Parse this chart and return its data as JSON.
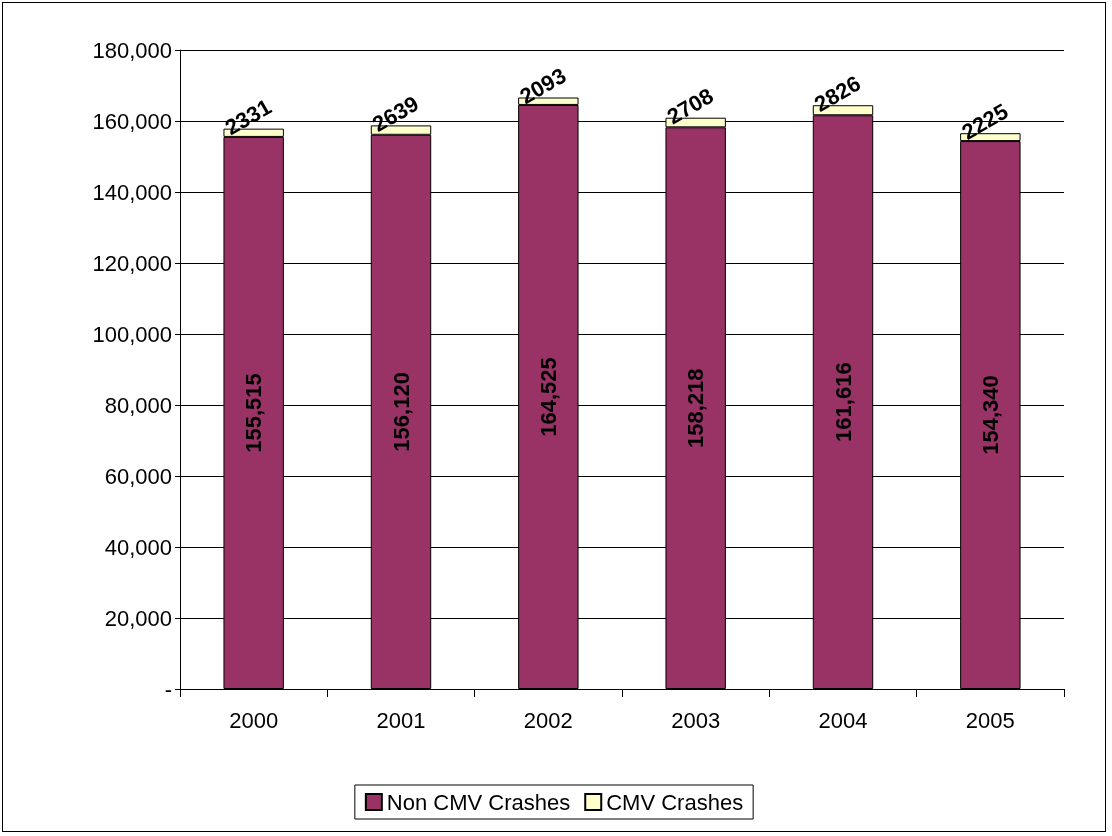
{
  "chart_data": {
    "type": "bar",
    "stacked": true,
    "categories": [
      "2000",
      "2001",
      "2002",
      "2003",
      "2004",
      "2005"
    ],
    "series": [
      {
        "name": "Non CMV Crashes",
        "color": "#993366",
        "values": [
          155515,
          156120,
          164525,
          158218,
          161616,
          154340
        ],
        "value_labels": [
          "155,515",
          "156,120",
          "164,525",
          "158,218",
          "161,616",
          "154,340"
        ]
      },
      {
        "name": "CMV Crashes",
        "color": "#ffffcc",
        "values": [
          2331,
          2639,
          2093,
          2708,
          2826,
          2225
        ],
        "value_labels": [
          "2331",
          "2639",
          "2093",
          "2708",
          "2826",
          "2225"
        ]
      }
    ],
    "ylim": [
      0,
      180000
    ],
    "yticks": [
      {
        "value": 0,
        "label": "-"
      },
      {
        "value": 20000,
        "label": "20,000"
      },
      {
        "value": 40000,
        "label": "40,000"
      },
      {
        "value": 60000,
        "label": "60,000"
      },
      {
        "value": 80000,
        "label": "80,000"
      },
      {
        "value": 100000,
        "label": "100,000"
      },
      {
        "value": 120000,
        "label": "120,000"
      },
      {
        "value": 140000,
        "label": "140,000"
      },
      {
        "value": 160000,
        "label": "160,000"
      },
      {
        "value": 180000,
        "label": "180,000"
      }
    ],
    "grid": "y",
    "legend": "bottom"
  }
}
